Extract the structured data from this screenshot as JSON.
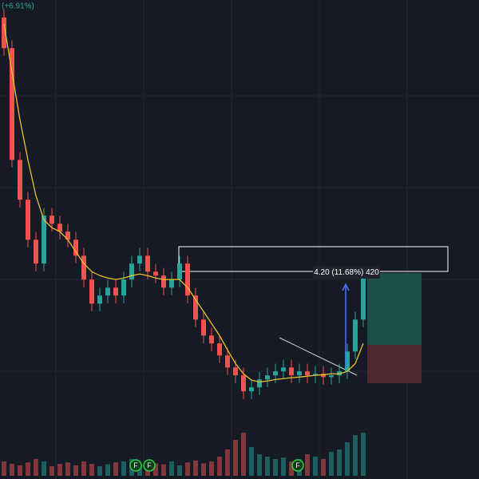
{
  "chart_data": {
    "type": "candlestick",
    "header_label": "(+6.91%)",
    "measure_label": "4.20 (11.68%) 420",
    "event_markers": [
      "F",
      "F",
      "F"
    ],
    "ylim": [
      30.9,
      52.8
    ],
    "vlim": [
      0,
      100
    ],
    "up_color": "#26a69a",
    "down_color": "#ef5350",
    "ma_color": "#e6c229",
    "open": [
      52.0,
      50.6,
      45.49,
      43.67,
      41.84,
      40.75,
      42.94,
      42.57,
      42.21,
      41.84,
      41.11,
      40.02,
      38.92,
      39.29,
      39.65,
      39.29,
      40.02,
      40.75,
      41.11,
      40.38,
      40.2,
      39.65,
      40.02,
      40.75,
      39.29,
      38.19,
      37.46,
      37.1,
      36.55,
      36.0,
      35.64,
      34.91,
      35.09,
      35.45,
      35.64,
      35.82,
      36.0,
      35.64,
      35.82,
      35.64,
      35.71,
      35.56,
      35.64,
      35.82,
      36.73,
      38.19
    ],
    "high": [
      52.35,
      50.95,
      45.84,
      44.02,
      42.19,
      43.29,
      43.29,
      42.92,
      42.56,
      42.19,
      41.46,
      40.37,
      39.64,
      40.0,
      40.0,
      40.37,
      41.1,
      41.46,
      41.46,
      40.73,
      40.55,
      40.37,
      41.1,
      41.1,
      39.64,
      38.54,
      37.81,
      37.45,
      36.9,
      36.35,
      35.99,
      35.44,
      35.8,
      35.99,
      36.17,
      36.35,
      36.35,
      36.17,
      36.17,
      36.06,
      36.06,
      35.99,
      36.17,
      37.08,
      38.54,
      40.55
    ],
    "low": [
      50.25,
      45.14,
      43.32,
      41.49,
      40.4,
      40.4,
      42.22,
      41.86,
      41.49,
      40.76,
      39.67,
      38.57,
      38.57,
      38.94,
      38.94,
      38.94,
      39.67,
      40.4,
      40.03,
      39.85,
      39.3,
      39.3,
      39.67,
      38.94,
      37.84,
      37.11,
      36.75,
      36.2,
      35.65,
      35.29,
      34.56,
      34.56,
      34.74,
      35.1,
      35.29,
      35.47,
      35.29,
      35.29,
      35.29,
      35.29,
      35.21,
      35.21,
      35.29,
      35.47,
      36.38,
      37.84
    ],
    "close": [
      50.6,
      45.49,
      43.67,
      41.84,
      40.75,
      42.94,
      42.57,
      42.21,
      41.84,
      41.11,
      40.02,
      38.92,
      39.29,
      39.65,
      39.29,
      40.02,
      40.75,
      41.11,
      40.38,
      40.2,
      39.65,
      40.02,
      40.75,
      39.29,
      38.19,
      37.46,
      37.1,
      36.55,
      36.0,
      35.64,
      34.91,
      35.09,
      35.45,
      35.64,
      35.82,
      36.0,
      35.64,
      35.82,
      35.64,
      35.71,
      35.56,
      35.64,
      35.82,
      36.73,
      38.19,
      40.2
    ],
    "ma": [
      51.7,
      49.51,
      47.32,
      45.49,
      43.85,
      42.75,
      42.39,
      42.21,
      41.84,
      41.29,
      40.75,
      40.38,
      40.2,
      40.09,
      40.02,
      40.09,
      40.2,
      40.27,
      40.2,
      40.09,
      40.02,
      40.02,
      40.02,
      39.65,
      39.1,
      38.56,
      38.01,
      37.46,
      36.8,
      36.18,
      35.71,
      35.42,
      35.34,
      35.38,
      35.45,
      35.49,
      35.53,
      35.56,
      35.6,
      35.64,
      35.67,
      35.71,
      35.71,
      35.82,
      36.18,
      37.1
    ],
    "volume": [
      30,
      25,
      22,
      28,
      35,
      30,
      20,
      25,
      28,
      22,
      30,
      25,
      20,
      24,
      28,
      30,
      35,
      22,
      20,
      26,
      24,
      30,
      22,
      28,
      32,
      26,
      30,
      40,
      55,
      75,
      90,
      60,
      45,
      40,
      35,
      38,
      30,
      35,
      45,
      40,
      35,
      50,
      55,
      70,
      85,
      90
    ]
  }
}
